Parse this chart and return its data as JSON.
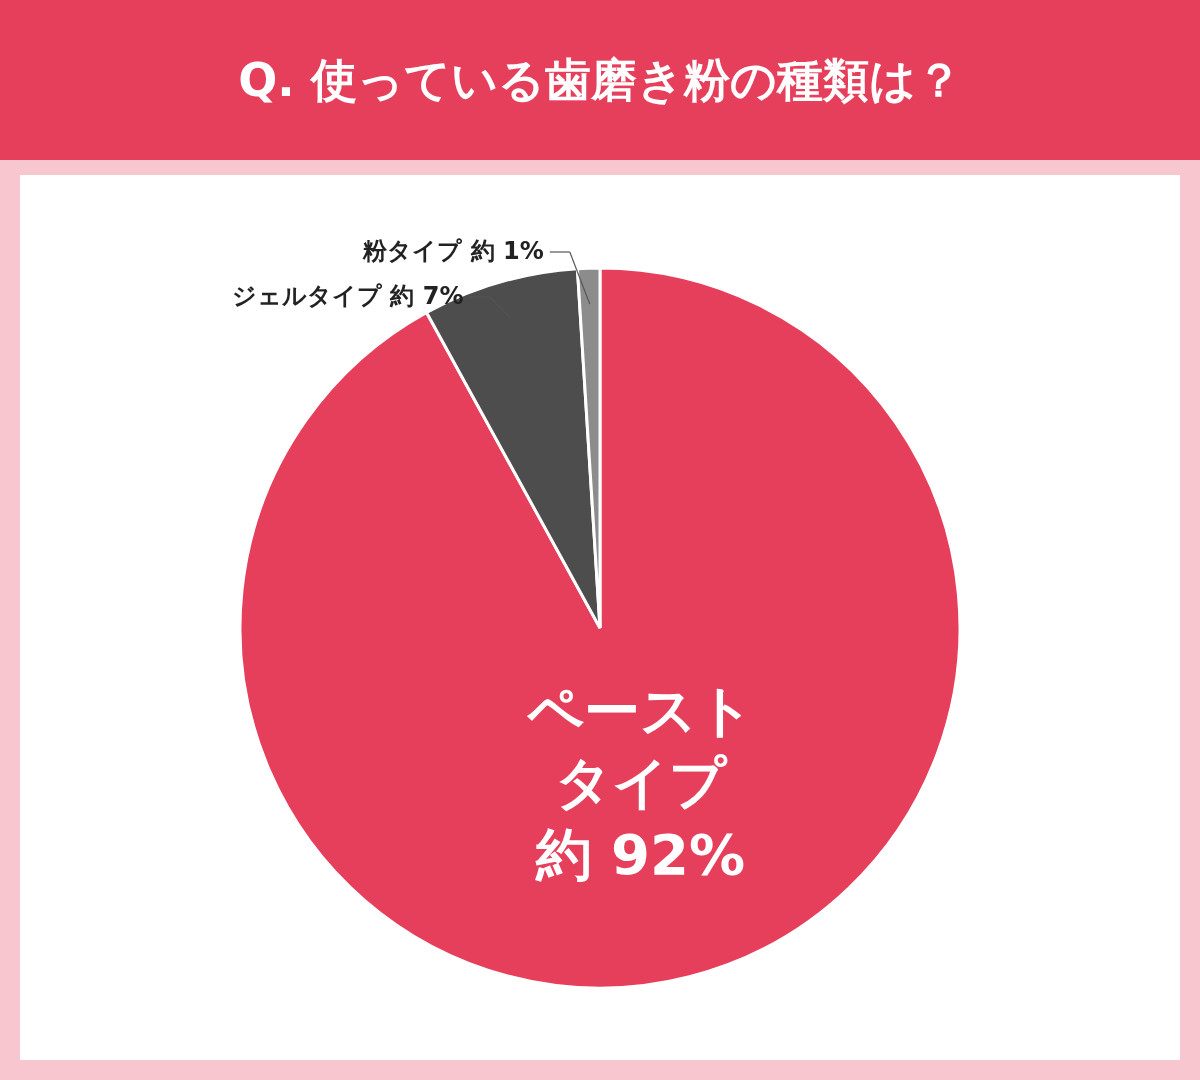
{
  "chart_data": {
    "type": "pie",
    "title": "Q. 使っている歯磨き粉の種類は？",
    "categories": [
      "ペーストタイプ",
      "ジェルタイプ",
      "粉タイプ"
    ],
    "values": [
      92,
      7,
      1
    ],
    "colors": [
      "#e63f5c",
      "#4d4d4d",
      "#8c8c8c"
    ],
    "value_labels": [
      "約 92%",
      "約 7%",
      "約 1%"
    ]
  }
}
